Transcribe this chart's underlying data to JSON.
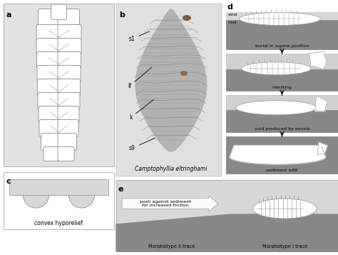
{
  "bg_color": "#ffffff",
  "panel_bg": "#e2e2e2",
  "dark_gray": "#888888",
  "mid_gray": "#aaaaaa",
  "light_gray": "#cccccc",
  "panel_a_label": "a",
  "panel_b_label": "b",
  "panel_c_label": "c",
  "panel_d_label": "d",
  "panel_e_label": "e",
  "label_s1": "s1",
  "label_lf": "lf",
  "label_k": "k",
  "label_s9": "s9",
  "caption_b": "Camptophyllia eltringhami",
  "caption_c": "convex hyporelief",
  "d_labels": [
    "burial in supine position",
    "moulting",
    "void produced by exuvia",
    "sediment infill"
  ],
  "e_label_left": "Morphotype II trace",
  "e_label_right": "Morphotype I trace",
  "e_arrow_text": "push against sediment\nfor increased friction",
  "sand_label": "sand",
  "mud_label": "mud",
  "seg_color": "#c8c8c8",
  "seg_ec": "#999999",
  "fossil_dark": "#a0a0a0",
  "fossil_med": "#b8b8b8",
  "brown1": "#7a4010",
  "brown2": "#8a5020"
}
